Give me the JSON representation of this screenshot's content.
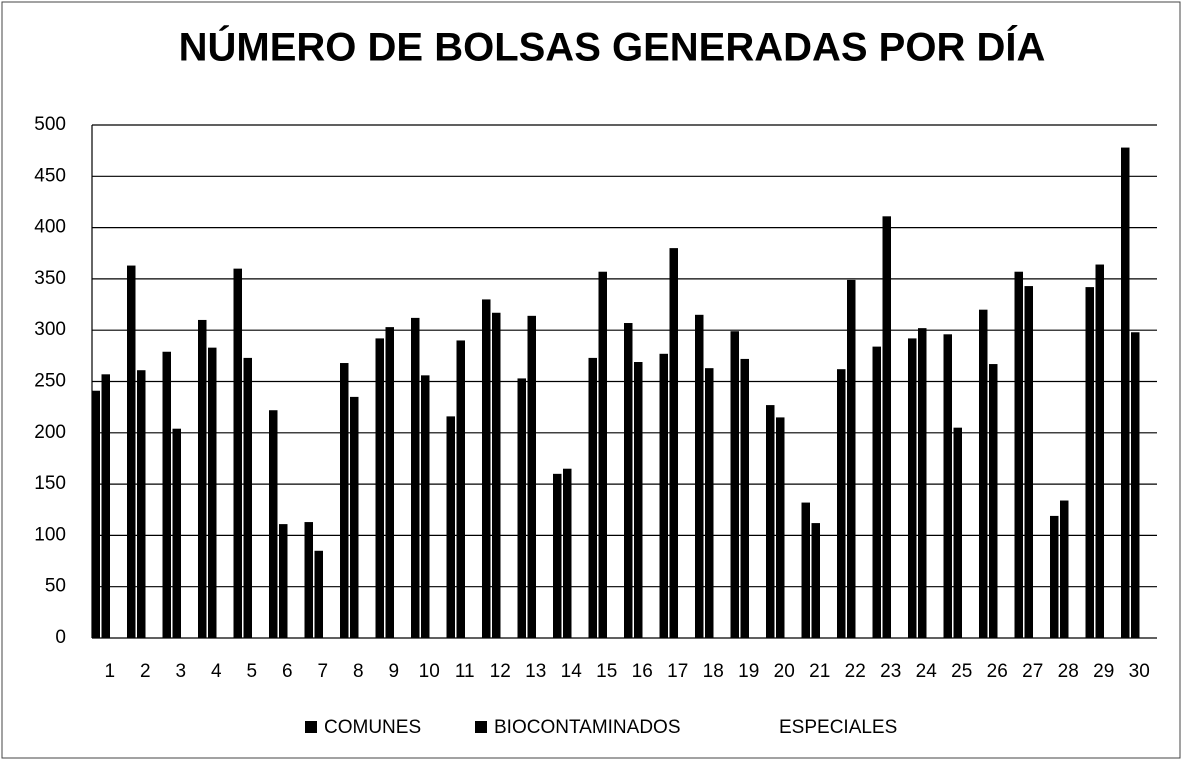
{
  "chart_data": {
    "type": "bar",
    "title": "NÚMERO DE BOLSAS GENERADAS POR DÍA",
    "categories": [
      "1",
      "2",
      "3",
      "4",
      "5",
      "6",
      "7",
      "8",
      "9",
      "10",
      "11",
      "12",
      "13",
      "14",
      "15",
      "16",
      "17",
      "18",
      "19",
      "20",
      "21",
      "22",
      "23",
      "24",
      "25",
      "26",
      "27",
      "28",
      "29",
      "30"
    ],
    "series": [
      {
        "name": "COMUNES",
        "color": "#000000",
        "values": [
          241,
          363,
          279,
          310,
          360,
          222,
          113,
          268,
          292,
          312,
          216,
          330,
          253,
          160,
          273,
          307,
          277,
          315,
          299,
          227,
          132,
          262,
          284,
          292,
          296,
          320,
          357,
          119,
          342,
          478
        ]
      },
      {
        "name": "BIOCONTAMINADOS",
        "color": "#000000",
        "values": [
          257,
          261,
          204,
          283,
          273,
          111,
          85,
          235,
          303,
          256,
          290,
          317,
          314,
          165,
          357,
          269,
          380,
          263,
          272,
          215,
          112,
          349,
          411,
          302,
          205,
          267,
          343,
          134,
          364,
          298
        ]
      },
      {
        "name": "ESPECIALES",
        "color": "#ffffff",
        "values": [
          0,
          0,
          0,
          0,
          0,
          0,
          0,
          0,
          0,
          0,
          0,
          0,
          0,
          0,
          0,
          0,
          0,
          0,
          0,
          0,
          0,
          0,
          0,
          0,
          0,
          0,
          0,
          0,
          0,
          0
        ]
      }
    ],
    "ylim": [
      0,
      500
    ],
    "yticks": [
      0,
      50,
      100,
      150,
      200,
      250,
      300,
      350,
      400,
      450,
      500
    ],
    "grid": true,
    "legend": "bottom"
  }
}
